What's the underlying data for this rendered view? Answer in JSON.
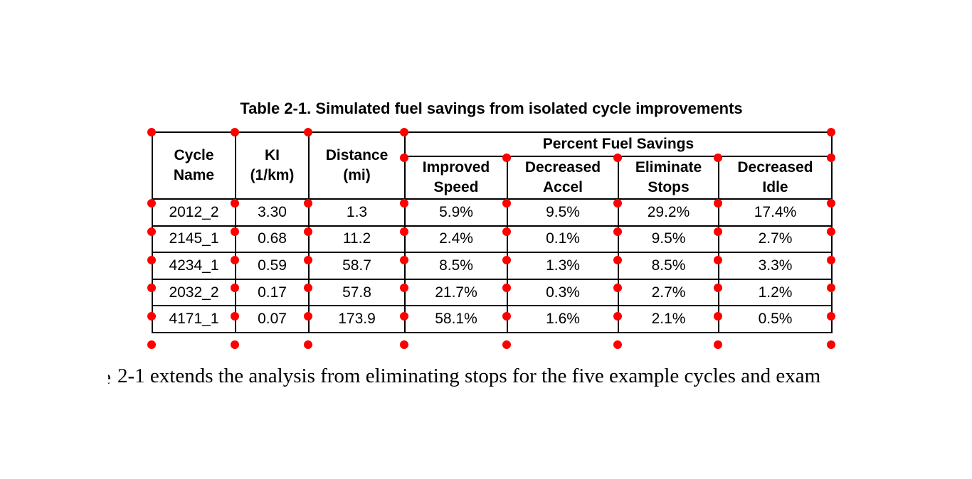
{
  "title": "Table 2-1. Simulated fuel savings from isolated cycle improvements",
  "table": {
    "header": {
      "cycle_name": "Cycle\nName",
      "ki": "KI\n(1/km)",
      "distance": "Distance\n(mi)",
      "percent_fuel_savings": "Percent Fuel Savings",
      "sub": [
        "Improved\nSpeed",
        "Decreased\nAccel",
        "Eliminate\nStops",
        "Decreased\nIdle"
      ]
    },
    "rows": [
      {
        "cells": [
          "2012_2",
          "3.30",
          "1.3",
          "5.9%",
          "9.5%",
          "29.2%",
          "17.4%"
        ]
      },
      {
        "cells": [
          "2145_1",
          "0.68",
          "11.2",
          "2.4%",
          "0.1%",
          "9.5%",
          "2.7%"
        ]
      },
      {
        "cells": [
          "4234_1",
          "0.59",
          "58.7",
          "8.5%",
          "1.3%",
          "8.5%",
          "3.3%"
        ]
      },
      {
        "cells": [
          "2032_2",
          "0.17",
          "57.8",
          "21.7%",
          "0.3%",
          "2.7%",
          "1.2%"
        ]
      },
      {
        "cells": [
          "4171_1",
          "0.07",
          "173.9",
          "58.1%",
          "1.6%",
          "2.1%",
          "0.5%"
        ]
      }
    ]
  },
  "body_text": {
    "clipped_fragment": "e",
    "sentence": "2-1 extends the analysis from eliminating stops for the five example cycles and exam"
  },
  "markers": {
    "color": "#ff0000"
  }
}
